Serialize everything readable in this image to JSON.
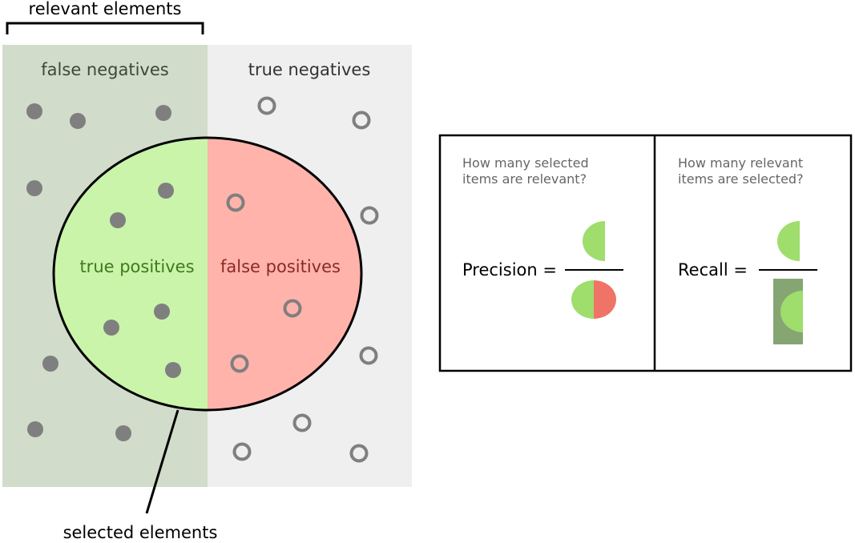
{
  "labels": {
    "relevant_elements": "relevant elements",
    "false_negatives": "false negatives",
    "true_negatives": "true negatives",
    "true_positives": "true positives",
    "false_positives": "false positives",
    "selected_elements": "selected elements"
  },
  "precision_panel": {
    "question_line1": "How many selected",
    "question_line2": "items are relevant?",
    "formula_label": "Precision ="
  },
  "recall_panel": {
    "question_line1": "How many relevant",
    "question_line2": "items are selected?",
    "formula_label": "Recall ="
  },
  "colors": {
    "relevant_region": "#d1dccb",
    "irrelevant_region": "#efefef",
    "true_positive_fill": "#c9f4a9",
    "false_positive_fill": "#ffb3ab",
    "marker_gray": "#7f7f7f",
    "precision_green": "#9fdd6d",
    "precision_red": "#f07368",
    "recall_dark_green": "#85a673"
  }
}
